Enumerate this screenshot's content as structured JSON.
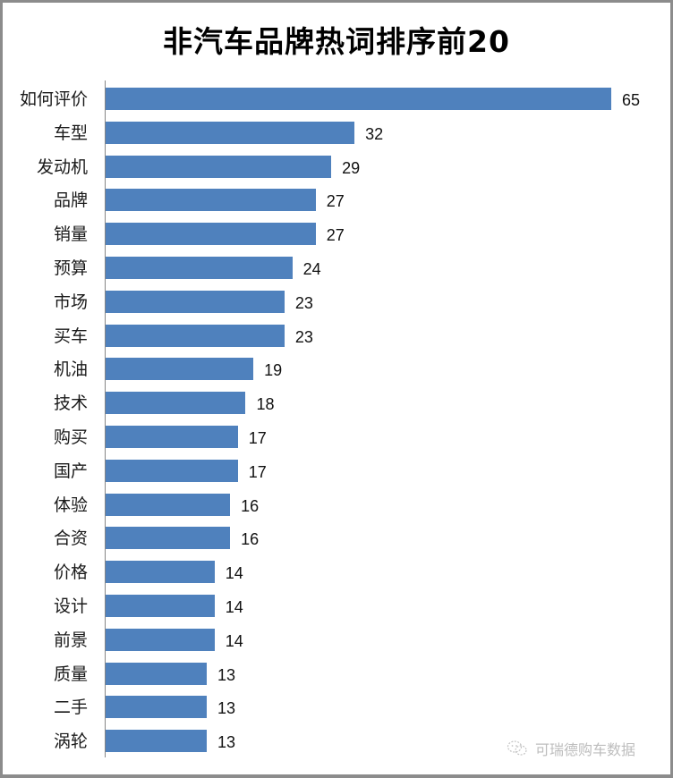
{
  "title": "非汽车品牌热词排序前20",
  "watermark": {
    "text": "可瑞德购车数据",
    "icon": "wechat-icon"
  },
  "colors": {
    "bar": "#4f81bd",
    "axis": "#868686",
    "frame": "#8c8c8c"
  },
  "chart_data": {
    "type": "bar",
    "orientation": "horizontal",
    "title": "非汽车品牌热词排序前20",
    "xlabel": "",
    "ylabel": "",
    "categories": [
      "如何评价",
      "车型",
      "发动机",
      "品牌",
      "销量",
      "预算",
      "市场",
      "买车",
      "机油",
      "技术",
      "购买",
      "国产",
      "体验",
      "合资",
      "价格",
      "设计",
      "前景",
      "质量",
      "二手",
      "涡轮"
    ],
    "values": [
      65,
      32,
      29,
      27,
      27,
      24,
      23,
      23,
      19,
      18,
      17,
      17,
      16,
      16,
      14,
      14,
      14,
      13,
      13,
      13
    ],
    "data_labels": true,
    "grid": false,
    "legend": null,
    "xlim": [
      0,
      65
    ]
  }
}
